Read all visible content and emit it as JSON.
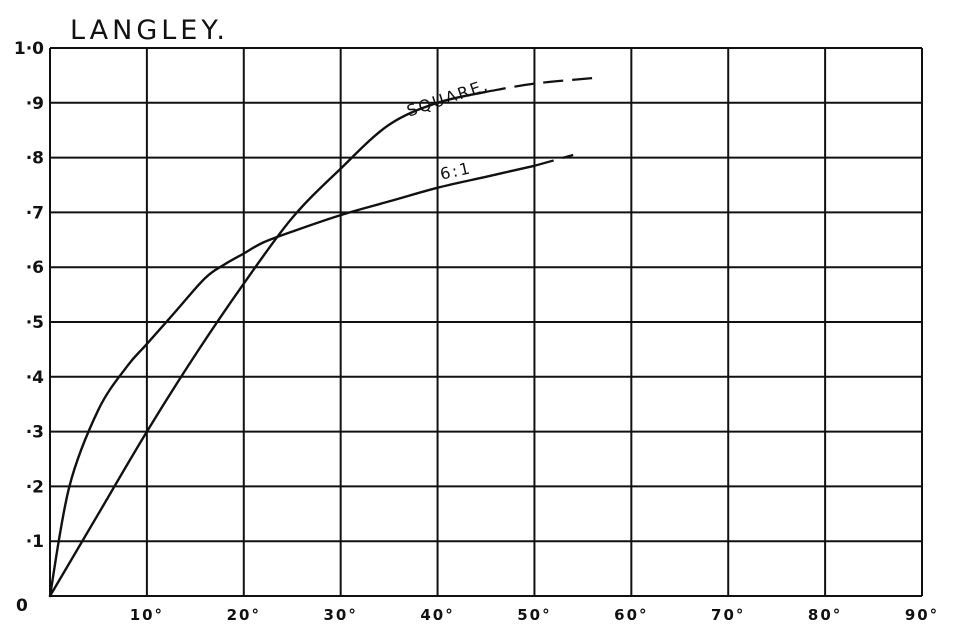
{
  "chart_data": {
    "type": "line",
    "title": "LANGLEY.",
    "xlabel": "",
    "ylabel": "",
    "xlim": [
      0,
      90
    ],
    "ylim": [
      0,
      1.0
    ],
    "x_ticks": [
      {
        "value": 0,
        "label": "0"
      },
      {
        "value": 10,
        "label": "10°"
      },
      {
        "value": 20,
        "label": "20°"
      },
      {
        "value": 30,
        "label": "30°"
      },
      {
        "value": 40,
        "label": "40°"
      },
      {
        "value": 50,
        "label": "50°"
      },
      {
        "value": 60,
        "label": "60°"
      },
      {
        "value": 70,
        "label": "70°"
      },
      {
        "value": 80,
        "label": "80°"
      },
      {
        "value": 90,
        "label": "90°"
      }
    ],
    "y_ticks": [
      {
        "value": 0.1,
        "label": "·1"
      },
      {
        "value": 0.2,
        "label": "·2"
      },
      {
        "value": 0.3,
        "label": "·3"
      },
      {
        "value": 0.4,
        "label": "·4"
      },
      {
        "value": 0.5,
        "label": "·5"
      },
      {
        "value": 0.6,
        "label": "·6"
      },
      {
        "value": 0.7,
        "label": "·7"
      },
      {
        "value": 0.8,
        "label": "·8"
      },
      {
        "value": 0.9,
        "label": "·9"
      },
      {
        "value": 1.0,
        "label": "1·0"
      }
    ],
    "grid": true,
    "series": [
      {
        "name": "SQUARE.",
        "x": [
          0,
          5,
          10,
          15,
          20,
          25,
          30,
          35,
          40,
          45
        ],
        "y": [
          0,
          0.15,
          0.3,
          0.44,
          0.57,
          0.69,
          0.78,
          0.86,
          0.9,
          0.92
        ],
        "extension": {
          "x": [
            45,
            50,
            56
          ],
          "y": [
            0.92,
            0.935,
            0.945
          ],
          "style": "dashed"
        }
      },
      {
        "name": "6:1",
        "x": [
          0,
          2,
          5,
          8,
          10,
          13,
          16,
          18,
          20,
          22,
          25,
          30,
          35,
          40,
          45,
          50
        ],
        "y": [
          0,
          0.2,
          0.34,
          0.42,
          0.46,
          0.52,
          0.58,
          0.605,
          0.625,
          0.645,
          0.665,
          0.695,
          0.72,
          0.745,
          0.765,
          0.785
        ],
        "extension": {
          "x": [
            50,
            54
          ],
          "y": [
            0.785,
            0.805
          ],
          "style": "dashed"
        }
      }
    ]
  }
}
